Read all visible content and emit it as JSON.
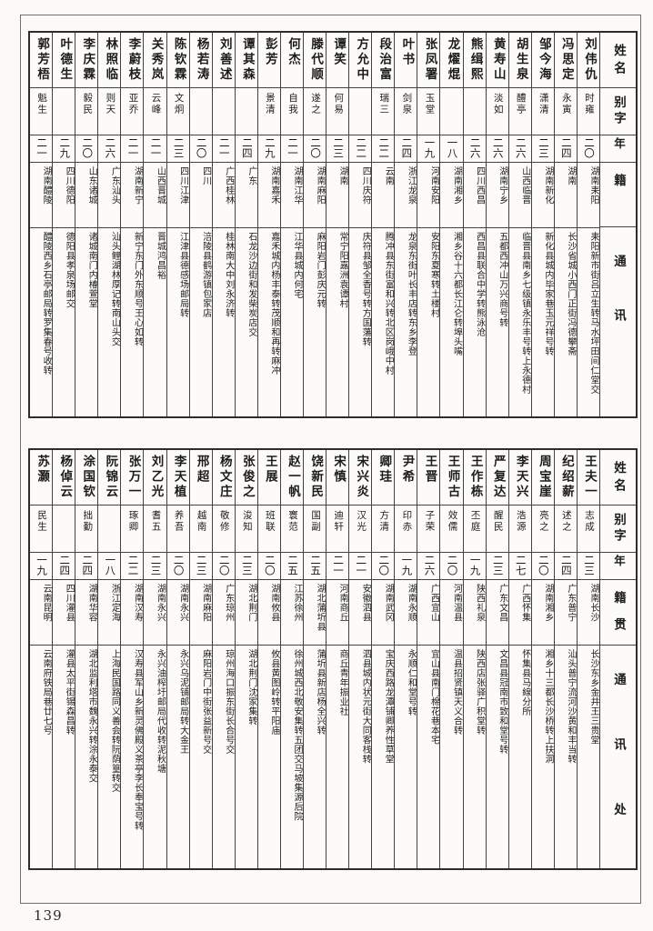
{
  "page": {
    "number": "139"
  },
  "row_headers": {
    "name": "姓名",
    "courtesy": "别字",
    "age": "年龄",
    "native": "籍贯",
    "address": "通讯处"
  },
  "tables": [
    {
      "id": "top",
      "entries": [
        {
          "name": "刘伟仇",
          "courtesy": "时雍",
          "age": "二〇",
          "native": "湖南耒阳",
          "address": "耒阳新市街吕立生转马水坪田间仁堂交"
        },
        {
          "name": "冯思定",
          "courtesy": "永寅",
          "age": "二四",
          "native": "湖南",
          "address": "长沙省城小西门正街冯德攀斋"
        },
        {
          "name": "邹今海",
          "courtesy": "潇清",
          "age": "二三",
          "native": "湖南新化",
          "address": "新化县城内毕家巷玉元祥号转"
        },
        {
          "name": "胡生泉",
          "courtesy": "醴亭",
          "age": "二六",
          "native": "山西临晋",
          "address": "临晋县南乡七级镇永乐丰号转上永德村"
        },
        {
          "name": "黄寿山",
          "courtesy": "淡如",
          "age": "二六",
          "native": "湖南宁乡",
          "address": "五都西冲山万兴商号转"
        },
        {
          "name": "熊缉熙",
          "courtesy": "",
          "age": "二六",
          "native": "四川西昌",
          "address": "西昌县联合中学转熊泳沧"
        },
        {
          "name": "龙燿焜",
          "courtesy": "",
          "age": "一八",
          "native": "湖南湘乡",
          "address": "湘乡谷十六都长江仑转埠头嘴"
        },
        {
          "name": "张凤署",
          "courtesy": "玉堂",
          "age": "一九",
          "native": "河南安阳",
          "address": "安阳东夏寒转土楼村"
        },
        {
          "name": "叶书",
          "courtesy": "剑泉",
          "age": "二四",
          "native": "浙江龙泉",
          "address": "龙泉东街叶长丰店转东乡李登"
        },
        {
          "name": "段治富",
          "courtesy": "瑞三",
          "age": "二二",
          "native": "云南",
          "address": "腾冲县东街富和兴转北区岗峨中村"
        },
        {
          "name": "方允中",
          "courtesy": "",
          "age": "二二",
          "native": "四川庆符",
          "address": "庆符县邹全香号转方国藩转"
        },
        {
          "name": "谭笑",
          "courtesy": "何易",
          "age": "二三",
          "native": "湖南",
          "address": "常宁阳嘉洲袁谭村"
        },
        {
          "name": "滕代顺",
          "courtesy": "遂之",
          "age": "二〇",
          "native": "湖南麻阳",
          "address": "麻阳岩门彭庆元转"
        },
        {
          "name": "何杰",
          "courtesy": "自我",
          "age": "二一",
          "native": "湖南江华",
          "address": "江华县城内何宅"
        },
        {
          "name": "彭芳",
          "courtesy": "景清",
          "age": "二九",
          "native": "湖南嘉禾",
          "address": "嘉禾城内杨丰泰转茂顺和再转麻冲"
        },
        {
          "name": "谭其森",
          "courtesy": "",
          "age": "二四",
          "native": "广东",
          "address": "石龙沙边街和发柴炭店交"
        },
        {
          "name": "刘善述",
          "courtesy": "",
          "age": "二一",
          "native": "广西桂林",
          "address": "桂林南大中刘永济转"
        },
        {
          "name": "杨若涛",
          "courtesy": "",
          "age": "二〇",
          "native": "四川",
          "address": "涪陵县鹤游镇包家店"
        },
        {
          "name": "陈钦霖",
          "courtesy": "文炯",
          "age": "二三",
          "native": "四川江津",
          "address": "江津县德感场邮局转"
        },
        {
          "name": "关秀岚",
          "courtesy": "云峰",
          "age": "二一",
          "native": "山西晋城",
          "address": "晋城鸿昌裕"
        },
        {
          "name": "李蔚枝",
          "courtesy": "亚乔",
          "age": "二一",
          "native": "湖南新宁",
          "address": "新宁东门外东顺号王心如转"
        },
        {
          "name": "林照临",
          "courtesy": "则天",
          "age": "二六",
          "native": "广东汕头",
          "address": "汕头鲤湖林厚记转南山头交"
        },
        {
          "name": "李庆霖",
          "courtesy": "毅民",
          "age": "二〇",
          "native": "山东诸城",
          "address": "诸城南门内椿萱堂"
        },
        {
          "name": "叶德生",
          "courtesy": "",
          "age": "二九",
          "native": "四川德阳",
          "address": "德阳县孝泉场邮交"
        },
        {
          "name": "郭芳梧",
          "courtesy": "魁生",
          "age": "二一",
          "native": "湖南醴陵",
          "address": "醴陵西乡石亭邮局转罗集春号收转"
        }
      ]
    },
    {
      "id": "bottom",
      "entries": [
        {
          "name": "王夫一",
          "courtesy": "志成",
          "age": "二三",
          "native": "湖南长沙",
          "address": "长沙东乡金井王三贵堂"
        },
        {
          "name": "纪绍薪",
          "courtesy": "述之",
          "age": "二四",
          "native": "广东普宁",
          "address": "汕头普宁流河沙黄和丰当转"
        },
        {
          "name": "周宝崖",
          "courtesy": "亮之",
          "age": "二〇",
          "native": "湖南湘乡",
          "address": "湘乡十三都长沙桥转上扶洞"
        },
        {
          "name": "李天兴",
          "courtesy": "浩源",
          "age": "二七",
          "native": "广西怀集",
          "address": "怀集县马線分所"
        },
        {
          "name": "严复达",
          "courtesy": "醒民",
          "age": "二三",
          "native": "广东文昌",
          "address": "文昌县冠南市致和堂号转"
        },
        {
          "name": "王作栋",
          "courtesy": "丕庭",
          "age": "一九",
          "native": "陕西礼泉",
          "address": "陕西店张驿广积堂转"
        },
        {
          "name": "王师古",
          "courtesy": "效儒",
          "age": "二〇",
          "native": "河南温县",
          "address": "温县招贤镇天义合转"
        },
        {
          "name": "王晋",
          "courtesy": "子荣",
          "age": "二六",
          "native": "广西宜山",
          "address": "宜山县南门棉花巷本宅"
        },
        {
          "name": "尹希",
          "courtesy": "印赤",
          "age": "一九",
          "native": "湖南永顺",
          "address": "永顺仁和堂号转"
        },
        {
          "name": "卿珪",
          "courtesy": "方清",
          "age": "二〇",
          "native": "湖南武冈",
          "address": "宝庆西路龙潭铺卿养性草堂"
        },
        {
          "name": "宋兴炎",
          "courtesy": "汉光",
          "age": "二一",
          "native": "安徽泗县",
          "address": "泗县城内状元街大同客栈转"
        },
        {
          "name": "宋慎",
          "courtesy": "迪轩",
          "age": "二一",
          "native": "河南商丘",
          "address": "商丘青年振业社"
        },
        {
          "name": "饶新民",
          "courtesy": "国副",
          "age": "二五",
          "native": "湖北蒲圻县",
          "address": "蒲圻县新店杨全兴转"
        },
        {
          "name": "赵一帆",
          "courtesy": "寰范",
          "age": "二五",
          "native": "江苏徐州",
          "address": "徐州城西北敬安集转五团交马坡集源后院"
        },
        {
          "name": "王展",
          "courtesy": "班联",
          "age": "二〇",
          "native": "湖南攸县",
          "address": "攸县黄图岭转平阳庙"
        },
        {
          "name": "张俊之",
          "courtesy": "浚知",
          "age": "二三",
          "native": "湖北荆门",
          "address": "湖北荆门沈家集转"
        },
        {
          "name": "杨文庄",
          "courtesy": "敬修",
          "age": "二〇",
          "native": "广东琼州",
          "address": "琼州海口振东街长合号交"
        },
        {
          "name": "邢超",
          "courtesy": "越南",
          "age": "二三",
          "native": "湖南麻阳",
          "address": "麻阳岩门中街张益新号交"
        },
        {
          "name": "李天植",
          "courtesy": "养吾",
          "age": "二〇",
          "native": "湖南永兴",
          "address": "永兴乌泥铺邮局转大金王"
        },
        {
          "name": "刘乙光",
          "courtesy": "耆五",
          "age": "二三",
          "native": "湖南永兴",
          "address": "永兴油榨圩邮局代收转泥秋塘"
        },
        {
          "name": "张万一",
          "courtesy": "琢卿",
          "age": "二二",
          "native": "湖南汉寿",
          "address": "汉寿县军山乡新灵佛殿义茶亭李长奉宝号转"
        },
        {
          "name": "阮锦云",
          "courtesy": "",
          "age": "一八",
          "native": "浙江定海",
          "address": "上海民国路同义善会转阮荫篁转交"
        },
        {
          "name": "涂国钦",
          "courtesy": "拙勤",
          "age": "二四",
          "native": "湖南华容",
          "address": "湖北监利塔市魏永兴转涂永泰交"
        },
        {
          "name": "杨倬云",
          "courtesy": "",
          "age": "二四",
          "native": "四川灌县",
          "address": "灌县太平街锡森昌转"
        },
        {
          "name": "苏灏",
          "courtesy": "民生",
          "age": "一九",
          "native": "云南昆明",
          "address": "云南府铁局巷廿七号"
        }
      ]
    }
  ]
}
